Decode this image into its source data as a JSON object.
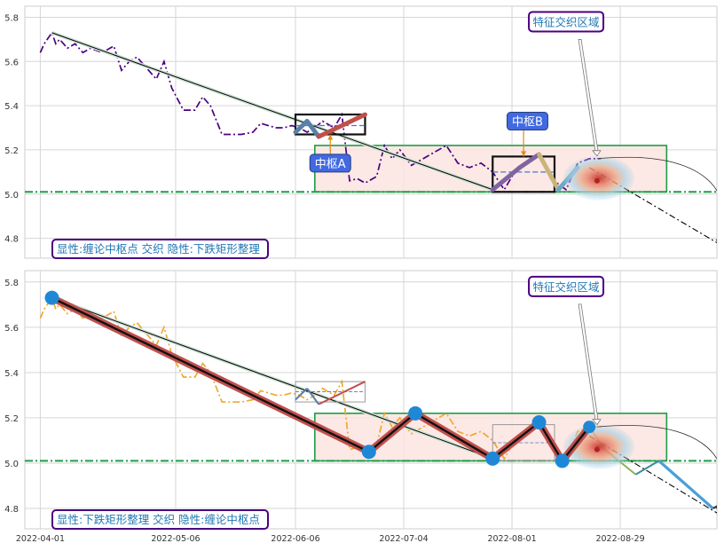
{
  "chart_data": [
    {
      "type": "line",
      "panel": "top",
      "xlim": [
        "2022-03-28",
        "2022-09-23"
      ],
      "ylim": [
        4.71,
        5.85
      ],
      "yticks": [
        4.8,
        5.0,
        5.2,
        5.4,
        5.6,
        5.8
      ],
      "grid": true,
      "price": {
        "color": "#4b0082",
        "style": "dashdot",
        "points": [
          [
            "2022-04-01",
            5.64
          ],
          [
            "2022-04-02",
            5.68
          ],
          [
            "2022-04-04",
            5.73
          ],
          [
            "2022-04-05",
            5.68
          ],
          [
            "2022-04-06",
            5.7
          ],
          [
            "2022-04-08",
            5.66
          ],
          [
            "2022-04-10",
            5.68
          ],
          [
            "2022-04-12",
            5.64
          ],
          [
            "2022-04-14",
            5.66
          ],
          [
            "2022-04-17",
            5.64
          ],
          [
            "2022-04-20",
            5.67
          ],
          [
            "2022-04-22",
            5.56
          ],
          [
            "2022-04-24",
            5.6
          ],
          [
            "2022-04-26",
            5.62
          ],
          [
            "2022-04-28",
            5.58
          ],
          [
            "2022-05-01",
            5.52
          ],
          [
            "2022-05-03",
            5.6
          ],
          [
            "2022-05-05",
            5.48
          ],
          [
            "2022-05-08",
            5.38
          ],
          [
            "2022-05-11",
            5.38
          ],
          [
            "2022-05-13",
            5.44
          ],
          [
            "2022-05-15",
            5.4
          ],
          [
            "2022-05-18",
            5.27
          ],
          [
            "2022-05-20",
            5.27
          ],
          [
            "2022-05-23",
            5.27
          ],
          [
            "2022-05-26",
            5.28
          ],
          [
            "2022-05-28",
            5.32
          ],
          [
            "2022-06-01",
            5.3
          ],
          [
            "2022-06-03",
            5.3
          ],
          [
            "2022-06-05",
            5.31
          ],
          [
            "2022-06-07",
            5.3
          ],
          [
            "2022-06-09",
            5.28
          ],
          [
            "2022-06-11",
            5.3
          ],
          [
            "2022-06-13",
            5.33
          ],
          [
            "2022-06-16",
            5.3
          ],
          [
            "2022-06-18",
            5.36
          ],
          [
            "2022-06-20",
            5.06
          ],
          [
            "2022-06-22",
            5.07
          ],
          [
            "2022-06-24",
            5.05
          ],
          [
            "2022-06-27",
            5.08
          ],
          [
            "2022-06-29",
            5.22
          ],
          [
            "2022-07-01",
            5.16
          ],
          [
            "2022-07-03",
            5.2
          ],
          [
            "2022-07-06",
            5.13
          ],
          [
            "2022-07-08",
            5.15
          ],
          [
            "2022-07-10",
            5.17
          ],
          [
            "2022-07-13",
            5.2
          ],
          [
            "2022-07-15",
            5.22
          ],
          [
            "2022-07-18",
            5.14
          ],
          [
            "2022-07-21",
            5.12
          ],
          [
            "2022-07-24",
            5.14
          ],
          [
            "2022-07-27",
            5.1
          ],
          [
            "2022-07-30",
            5.02
          ],
          [
            "2022-08-02",
            5.11
          ],
          [
            "2022-08-05",
            5.15
          ],
          [
            "2022-08-08",
            5.18
          ],
          [
            "2022-08-11",
            5.07
          ],
          [
            "2022-08-15",
            5.02
          ],
          [
            "2022-08-18",
            5.14
          ],
          [
            "2022-08-21",
            5.16
          ],
          [
            "2022-08-24",
            5.16
          ]
        ]
      },
      "trendlines": [
        {
          "from": [
            "2022-04-04",
            5.73
          ],
          "to": [
            "2022-07-27",
            5.02
          ],
          "color": "#000000"
        },
        {
          "from": [
            "2022-08-21",
            5.12
          ],
          "to": [
            "2022-09-24",
            4.77
          ],
          "color": "#000000"
        }
      ],
      "zone": {
        "x": [
          "2022-06-11",
          "2022-09-10"
        ],
        "y": [
          5.01,
          5.22
        ],
        "fill": "#fbe4df",
        "edge": "#1f9d48"
      },
      "hline": {
        "y": 5.01,
        "color": "#1f9d48",
        "style": "dashdot"
      },
      "centers": [
        {
          "label": "中枢A",
          "box": {
            "x": [
              "2022-06-06",
              "2022-06-24"
            ],
            "y": [
              5.27,
              5.36
            ]
          },
          "mid": 5.31,
          "label_anchor": [
            "2022-06-15",
            5.14
          ],
          "strokes": [
            {
              "from": [
                "2022-06-06",
                5.28
              ],
              "to": [
                "2022-06-09",
                5.33
              ],
              "color": "#5a7fa8"
            },
            {
              "from": [
                "2022-06-09",
                5.33
              ],
              "to": [
                "2022-06-12",
                5.26
              ],
              "color": "#5a7fa8"
            },
            {
              "from": [
                "2022-06-12",
                5.26
              ],
              "to": [
                "2022-06-24",
                5.36
              ],
              "color": "#c0504d"
            }
          ]
        },
        {
          "label": "中枢B",
          "box": {
            "x": [
              "2022-07-27",
              "2022-08-12"
            ],
            "y": [
              5.01,
              5.17
            ]
          },
          "mid": 5.1,
          "label_anchor": [
            "2022-08-05",
            5.33
          ],
          "strokes": [
            {
              "from": [
                "2022-07-27",
                5.02
              ],
              "to": [
                "2022-08-03",
                5.12
              ],
              "color": "#8064a2"
            },
            {
              "from": [
                "2022-08-03",
                5.12
              ],
              "to": [
                "2022-08-08",
                5.18
              ],
              "color": "#8064a2"
            },
            {
              "from": [
                "2022-08-08",
                5.18
              ],
              "to": [
                "2022-08-13",
                5.02
              ],
              "color": "#c9b47a"
            },
            {
              "from": [
                "2022-08-13",
                5.02
              ],
              "to": [
                "2022-08-18",
                5.12
              ],
              "color": "#6aa7c9"
            }
          ]
        }
      ],
      "highlight": {
        "center": [
          "2022-08-23",
          5.06
        ],
        "label": "特征交织区域",
        "label_anchor": [
          "2022-08-15",
          5.78
        ]
      },
      "arc": {
        "from": [
          "2022-08-23",
          5.16
        ],
        "to": [
          "2022-09-24",
          4.77
        ]
      },
      "caption": "显性:缠论中枢点 交织 隐性:下跌矩形整理"
    },
    {
      "type": "line",
      "panel": "bottom",
      "xlim": [
        "2022-03-28",
        "2022-09-23"
      ],
      "ylim": [
        4.71,
        5.85
      ],
      "yticks": [
        4.8,
        5.0,
        5.2,
        5.4,
        5.6,
        5.8
      ],
      "xticks": [
        "2022-04-01",
        "2022-05-06",
        "2022-06-06",
        "2022-07-04",
        "2022-08-01",
        "2022-08-29"
      ],
      "grid": true,
      "price": {
        "color": "#f0a830",
        "style": "dashdot",
        "points": [
          [
            "2022-04-01",
            5.64
          ],
          [
            "2022-04-02",
            5.68
          ],
          [
            "2022-04-04",
            5.73
          ],
          [
            "2022-04-05",
            5.68
          ],
          [
            "2022-04-06",
            5.7
          ],
          [
            "2022-04-08",
            5.66
          ],
          [
            "2022-04-10",
            5.68
          ],
          [
            "2022-04-12",
            5.64
          ],
          [
            "2022-04-14",
            5.66
          ],
          [
            "2022-04-17",
            5.64
          ],
          [
            "2022-04-20",
            5.67
          ],
          [
            "2022-04-22",
            5.56
          ],
          [
            "2022-04-24",
            5.6
          ],
          [
            "2022-04-26",
            5.62
          ],
          [
            "2022-04-28",
            5.58
          ],
          [
            "2022-05-01",
            5.52
          ],
          [
            "2022-05-03",
            5.6
          ],
          [
            "2022-05-05",
            5.48
          ],
          [
            "2022-05-08",
            5.38
          ],
          [
            "2022-05-11",
            5.38
          ],
          [
            "2022-05-13",
            5.44
          ],
          [
            "2022-05-15",
            5.4
          ],
          [
            "2022-05-18",
            5.27
          ],
          [
            "2022-05-20",
            5.27
          ],
          [
            "2022-05-23",
            5.27
          ],
          [
            "2022-05-26",
            5.28
          ],
          [
            "2022-05-28",
            5.32
          ],
          [
            "2022-06-01",
            5.3
          ],
          [
            "2022-06-03",
            5.3
          ],
          [
            "2022-06-05",
            5.31
          ],
          [
            "2022-06-07",
            5.3
          ],
          [
            "2022-06-09",
            5.28
          ],
          [
            "2022-06-11",
            5.3
          ],
          [
            "2022-06-13",
            5.33
          ],
          [
            "2022-06-16",
            5.3
          ],
          [
            "2022-06-18",
            5.36
          ],
          [
            "2022-06-20",
            5.06
          ],
          [
            "2022-06-22",
            5.07
          ],
          [
            "2022-06-24",
            5.05
          ],
          [
            "2022-06-27",
            5.08
          ],
          [
            "2022-06-29",
            5.22
          ],
          [
            "2022-07-01",
            5.16
          ],
          [
            "2022-07-03",
            5.2
          ],
          [
            "2022-07-06",
            5.13
          ],
          [
            "2022-07-08",
            5.15
          ],
          [
            "2022-07-10",
            5.17
          ],
          [
            "2022-07-13",
            5.2
          ],
          [
            "2022-07-15",
            5.22
          ],
          [
            "2022-07-18",
            5.14
          ],
          [
            "2022-07-21",
            5.12
          ],
          [
            "2022-07-24",
            5.14
          ],
          [
            "2022-07-27",
            5.1
          ],
          [
            "2022-07-30",
            5.02
          ],
          [
            "2022-08-02",
            5.11
          ],
          [
            "2022-08-05",
            5.15
          ],
          [
            "2022-08-08",
            5.18
          ],
          [
            "2022-08-11",
            5.07
          ],
          [
            "2022-08-15",
            5.02
          ],
          [
            "2022-08-18",
            5.14
          ],
          [
            "2022-08-21",
            5.16
          ],
          [
            "2022-08-24",
            5.16
          ]
        ]
      },
      "zigzag": {
        "color": "#c0504d",
        "points": [
          [
            "2022-04-04",
            5.73
          ],
          [
            "2022-06-25",
            5.05
          ],
          [
            "2022-07-07",
            5.22
          ],
          [
            "2022-07-27",
            5.02
          ],
          [
            "2022-08-08",
            5.18
          ],
          [
            "2022-08-14",
            5.01
          ],
          [
            "2022-08-21",
            5.16
          ]
        ]
      },
      "trendlines": [
        {
          "from": [
            "2022-04-04",
            5.73
          ],
          "to": [
            "2022-07-27",
            5.02
          ],
          "color": "#000000"
        },
        {
          "from": [
            "2022-08-21",
            5.12
          ],
          "to": [
            "2022-09-24",
            4.77
          ],
          "color": "#000000"
        }
      ],
      "projection": [
        [
          "2022-08-21",
          5.16
        ],
        [
          "2022-08-25",
          5.06
        ],
        [
          "2022-09-02",
          4.95
        ],
        [
          "2022-09-08",
          5.01
        ],
        [
          "2022-09-22",
          4.8
        ],
        [
          "2022-09-25",
          4.83
        ]
      ],
      "zone": {
        "x": [
          "2022-06-11",
          "2022-09-10"
        ],
        "y": [
          5.01,
          5.22
        ],
        "fill": "#fbe4df",
        "edge": "#1f9d48"
      },
      "hline": {
        "y": 5.01,
        "color": "#1f9d48",
        "style": "dashdot"
      },
      "ghost_boxes": [
        {
          "x": [
            "2022-06-06",
            "2022-06-24"
          ],
          "y": [
            5.27,
            5.36
          ]
        },
        {
          "x": [
            "2022-07-27",
            "2022-08-12"
          ],
          "y": [
            5.01,
            5.17
          ]
        }
      ],
      "highlight": {
        "center": [
          "2022-08-23",
          5.06
        ],
        "label": "特征交织区域",
        "label_anchor": [
          "2022-08-15",
          5.78
        ]
      },
      "arc": {
        "from": [
          "2022-08-23",
          5.16
        ],
        "to": [
          "2022-09-24",
          4.78
        ]
      },
      "caption": "显性:下跌矩形整理 交织 隐性:缠论中枢点"
    }
  ]
}
